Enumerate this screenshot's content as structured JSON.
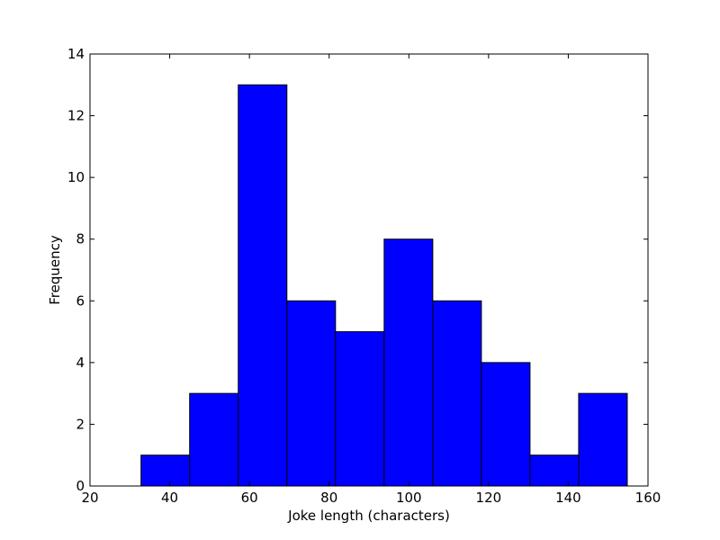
{
  "chart_data": {
    "type": "bar",
    "title": "",
    "xlabel": "Joke length (characters)",
    "ylabel": "Frequency",
    "xlim": [
      20,
      160
    ],
    "ylim": [
      0,
      14
    ],
    "xticks": [
      "20",
      "40",
      "60",
      "80",
      "100",
      "120",
      "140",
      "160"
    ],
    "yticks": [
      "0",
      "2",
      "4",
      "6",
      "8",
      "10",
      "12",
      "14"
    ],
    "bin_edges": [
      32.8,
      45.0,
      57.2,
      69.4,
      81.6,
      93.8,
      106.0,
      118.2,
      130.4,
      142.6,
      154.8
    ],
    "values": [
      1,
      3,
      13,
      6,
      5,
      8,
      6,
      4,
      1,
      3
    ],
    "grid": false,
    "legend": "none"
  },
  "colors": {
    "bar_fill": "#0000ff",
    "bar_edge": "#000000",
    "axes": "#000000",
    "background": "#ffffff"
  }
}
